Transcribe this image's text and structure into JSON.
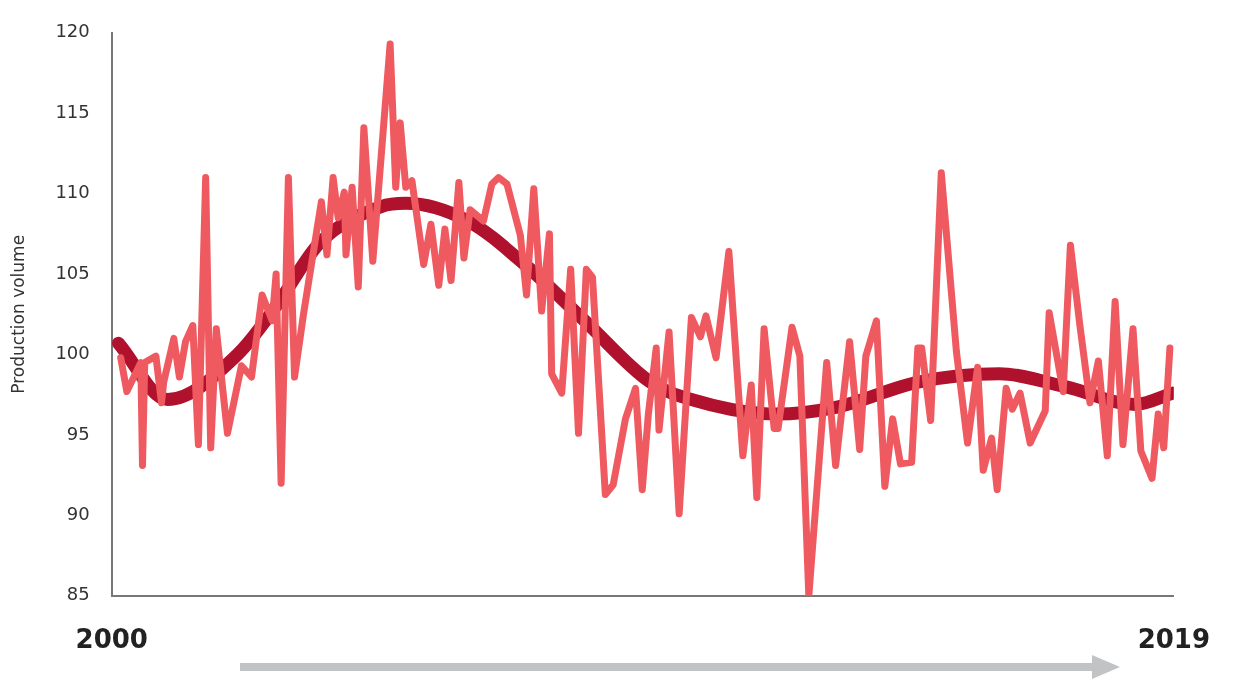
{
  "chart_data": {
    "type": "line",
    "ylabel": "Production volume",
    "xlim": [
      2000,
      2019
    ],
    "xticks": [
      2000,
      2019
    ],
    "ylim": [
      85,
      120
    ],
    "yticks": [
      85,
      90,
      95,
      100,
      105,
      110,
      115,
      120
    ],
    "grid": false,
    "legend": false,
    "marker": "none",
    "line_style": "solid",
    "series": [
      {
        "color": "#ef5a60",
        "x": [
          2000.16,
          2000.27,
          2000.52,
          2000.55,
          2000.59,
          2000.79,
          2000.89,
          2000.93,
          2001.11,
          2001.21,
          2001.32,
          2001.45,
          2001.55,
          2001.68,
          2001.77,
          2001.87,
          2002.07,
          2002.32,
          2002.5,
          2002.69,
          2002.87,
          2002.94,
          2003.03,
          2003.16,
          2003.27,
          2003.43,
          2003.75,
          2003.85,
          2003.96,
          2004.05,
          2004.16,
          2004.19,
          2004.3,
          2004.41,
          2004.51,
          2004.67,
          2004.98,
          2005.08,
          2005.16,
          2005.26,
          2005.37,
          2005.58,
          2005.71,
          2005.85,
          2005.96,
          2006.07,
          2006.21,
          2006.3,
          2006.41,
          2006.65,
          2006.8,
          2006.92,
          2007.07,
          2007.31,
          2007.42,
          2007.55,
          2007.69,
          2007.83,
          2007.87,
          2008.05,
          2008.21,
          2008.35,
          2008.49,
          2008.6,
          2008.83,
          2008.97,
          2009.19,
          2009.37,
          2009.49,
          2009.6,
          2009.74,
          2009.79,
          2009.97,
          2010.15,
          2010.37,
          2010.53,
          2010.63,
          2010.81,
          2011.04,
          2011.29,
          2011.44,
          2011.54,
          2011.67,
          2011.85,
          2011.92,
          2012.17,
          2012.31,
          2012.47,
          2012.79,
          2012.95,
          2013.2,
          2013.38,
          2013.49,
          2013.68,
          2013.83,
          2013.97,
          2014.11,
          2014.31,
          2014.42,
          2014.49,
          2014.65,
          2014.84,
          2015.11,
          2015.31,
          2015.49,
          2015.59,
          2015.74,
          2015.84,
          2016,
          2016.11,
          2016.25,
          2016.43,
          2016.7,
          2016.77,
          2017.02,
          2017.15,
          2017.32,
          2017.5,
          2017.65,
          2017.81,
          2017.95,
          2018.09,
          2018.27,
          2018.41,
          2018.61,
          2018.72,
          2018.82,
          2018.93
        ],
        "values": [
          99.8,
          97.7,
          99.5,
          93.1,
          99.5,
          99.9,
          97,
          98.3,
          101,
          98.6,
          100.8,
          101.8,
          94.4,
          111,
          94.2,
          101.6,
          95.1,
          99.3,
          98.6,
          103.7,
          102.1,
          105,
          92,
          111,
          98.6,
          102.5,
          109.5,
          106.2,
          111,
          108.5,
          110.1,
          106.2,
          110.4,
          104.2,
          114.1,
          105.8,
          119.3,
          110.4,
          114.4,
          110.4,
          110.8,
          105.6,
          108.1,
          104.3,
          107.8,
          104.6,
          110.7,
          106,
          109,
          108.3,
          110.6,
          111,
          110.6,
          107.4,
          103.7,
          110.3,
          102.7,
          107.5,
          98.8,
          97.6,
          105.3,
          95.1,
          105.3,
          104.8,
          91.3,
          91.9,
          96,
          97.9,
          91.6,
          96.3,
          100.4,
          95.3,
          101.4,
          90.1,
          102.3,
          101.1,
          102.4,
          99.8,
          106.4,
          93.7,
          98.1,
          91.1,
          101.6,
          95.4,
          95.4,
          101.7,
          99.9,
          85,
          99.5,
          93.1,
          100.8,
          94.1,
          99.9,
          102.1,
          91.8,
          96,
          93.2,
          93.3,
          100.4,
          100.4,
          95.9,
          111.3,
          100.2,
          94.5,
          99.2,
          92.8,
          94.8,
          91.6,
          97.9,
          96.6,
          97.6,
          94.5,
          96.5,
          102.6,
          97.7,
          106.8,
          101.8,
          97,
          99.6,
          93.7,
          103.3,
          94.4,
          101.6,
          94,
          92.3,
          96.3,
          94.2,
          100.4
        ]
      },
      {
        "type": "line",
        "color": "#b0122d",
        "x": [
          2000.12,
          2001,
          2002.25,
          2002.94,
          2003.71,
          2004.82,
          2005.26,
          2006.37,
          2007.42,
          2008.46,
          2009.63,
          2010.37,
          2011.88,
          2012.93,
          2014.45,
          2015.88,
          2017.06,
          2018.31,
          2018.98
        ],
        "values": [
          100.7,
          97.2,
          100,
          103,
          106.9,
          109.2,
          109.4,
          108.3,
          105.5,
          102.1,
          98.3,
          97.2,
          96.3,
          96.7,
          98.3,
          98.8,
          98,
          96.9,
          97.6
        ]
      }
    ]
  }
}
